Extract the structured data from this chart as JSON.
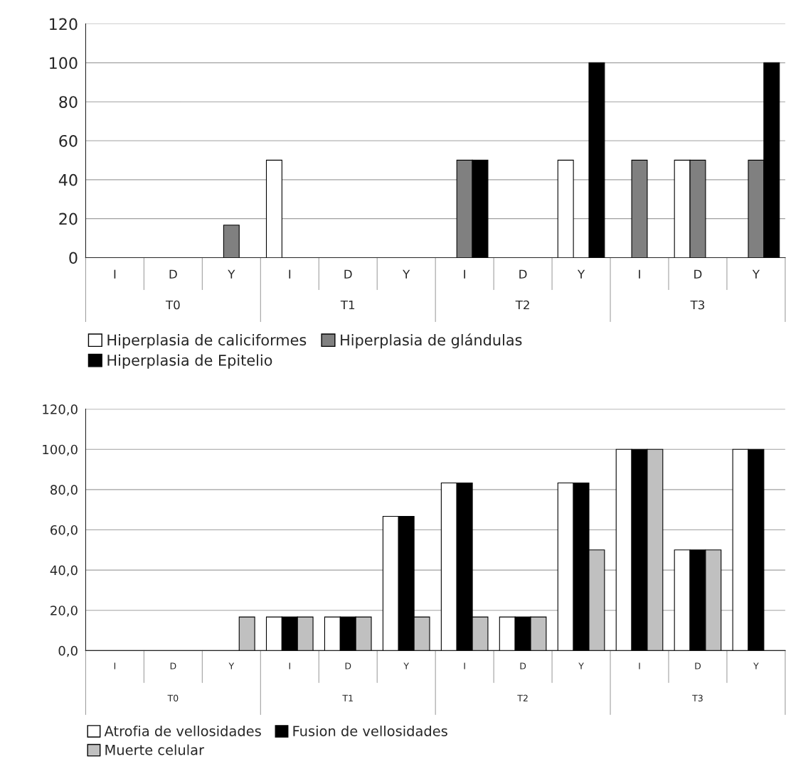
{
  "chart_data": [
    {
      "type": "bar",
      "categories": [
        "I",
        "D",
        "Y",
        "I",
        "D",
        "Y",
        "I",
        "D",
        "Y",
        "I",
        "D",
        "Y"
      ],
      "annotations": [
        "T0",
        "T1",
        "T2",
        "T3"
      ],
      "series": [
        {
          "name": "Hiperplasia de caliciformes",
          "color": "#ffffff",
          "values": [
            null,
            null,
            null,
            50,
            null,
            null,
            null,
            null,
            50,
            null,
            50,
            null
          ]
        },
        {
          "name": "Hiperplasia de glándulas",
          "color": "#808080",
          "values": [
            null,
            null,
            16.7,
            null,
            null,
            null,
            50,
            null,
            null,
            50,
            50,
            50
          ]
        },
        {
          "name": "Hiperplasia de Epitelio",
          "color": "#000000",
          "values": [
            null,
            null,
            null,
            null,
            null,
            null,
            50,
            null,
            100,
            null,
            null,
            100
          ]
        }
      ],
      "ylim": [
        0,
        120
      ],
      "yticks": [
        0,
        20,
        40,
        60,
        80,
        100,
        120
      ],
      "grid": "y",
      "legend": "bottom"
    },
    {
      "type": "bar",
      "categories": [
        "I",
        "D",
        "Y",
        "I",
        "D",
        "Y",
        "I",
        "D",
        "Y",
        "I",
        "D",
        "Y"
      ],
      "annotations": [
        "T0",
        "T1",
        "T2",
        "T3"
      ],
      "series": [
        {
          "name": "Atrofia de vellosidades",
          "color": "#ffffff",
          "values": [
            null,
            null,
            null,
            16.7,
            16.7,
            66.7,
            83.3,
            16.7,
            83.3,
            100,
            50,
            100
          ]
        },
        {
          "name": "Fusion de vellosidades",
          "color": "#000000",
          "values": [
            null,
            null,
            null,
            16.7,
            16.7,
            66.7,
            83.3,
            16.7,
            83.3,
            100,
            50,
            100
          ]
        },
        {
          "name": "Muerte celular",
          "color": "#c0c0c0",
          "values": [
            null,
            null,
            16.7,
            16.7,
            16.7,
            16.7,
            16.7,
            16.7,
            50,
            100,
            50,
            null
          ]
        }
      ],
      "ylim": [
        0,
        120
      ],
      "yticks": [
        {
          "value": 0,
          "label": "0,0"
        },
        {
          "value": 20,
          "label": "20,0"
        },
        {
          "value": 40,
          "label": "40,0"
        },
        {
          "value": 60,
          "label": "60,0"
        },
        {
          "value": 80,
          "label": "80,0"
        },
        {
          "value": 100,
          "label": "100,0"
        },
        {
          "value": 120,
          "label": "120,0"
        }
      ],
      "grid": "y",
      "legend": "bottom"
    }
  ]
}
